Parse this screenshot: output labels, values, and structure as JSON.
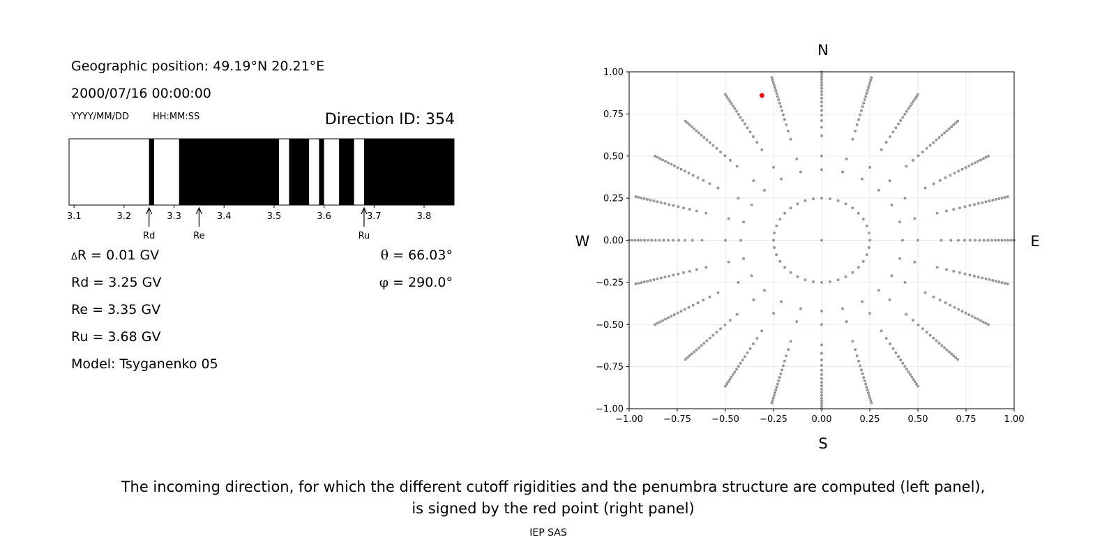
{
  "left_panel": {
    "geo_position": "Geographic position: 49.19°N 20.21°E",
    "datetime": "2000/07/16 00:00:00",
    "date_format": "YYYY/MM/DD",
    "time_format": "HH:MM:SS",
    "direction_id": "Direction ID: 354",
    "delta_r_sym": "Δ",
    "delta_r": "R = 0.01 GV",
    "rd": "Rd = 3.25 GV",
    "re": "Re = 3.35 GV",
    "ru": "Ru = 3.68 GV",
    "model": "Model: Tsyganenko 05",
    "theta_sym": "θ",
    "theta": " = 66.03°",
    "phi_sym": "φ",
    "phi": " = 290.0°"
  },
  "right_panel": {
    "north": "N",
    "south": "S",
    "west": "W",
    "east": "E"
  },
  "caption": {
    "line1": "The incoming direction, for which the different cutoff rigidities and the penumbra structure are computed (left panel),",
    "line2": "is signed by the red point (right panel)"
  },
  "footer": "IEP SAS",
  "chart_data": [
    {
      "type": "penumbra_bar",
      "xlim": [
        3.09,
        3.86
      ],
      "xticks": [
        3.1,
        3.2,
        3.3,
        3.4,
        3.5,
        3.6,
        3.7,
        3.8
      ],
      "tick_labels": [
        "3.1",
        "3.2",
        "3.3",
        "3.4",
        "3.5",
        "3.6",
        "3.7",
        "3.8"
      ],
      "colors": {
        "allowed": "#ffffff",
        "forbidden": "#000000"
      },
      "forbidden_bands": [
        [
          3.25,
          3.26
        ],
        [
          3.31,
          3.51
        ],
        [
          3.53,
          3.57
        ],
        [
          3.59,
          3.6
        ],
        [
          3.63,
          3.66
        ],
        [
          3.68,
          3.86
        ]
      ],
      "markers": [
        {
          "label": "Rd",
          "value": 3.25
        },
        {
          "label": "Re",
          "value": 3.35
        },
        {
          "label": "Ru",
          "value": 3.68
        }
      ]
    },
    {
      "type": "scatter",
      "xlim": [
        -1.0,
        1.0
      ],
      "ylim": [
        -1.0,
        1.0
      ],
      "xticks": [
        -1.0,
        -0.75,
        -0.5,
        -0.25,
        0.0,
        0.25,
        0.5,
        0.75,
        1.0
      ],
      "xtick_labels": [
        "−1.00",
        "−0.75",
        "−0.50",
        "−0.25",
        "0.00",
        "0.25",
        "0.50",
        "0.75",
        "1.00"
      ],
      "yticks": [
        1.0,
        0.75,
        0.5,
        0.25,
        0.0,
        -0.25,
        -0.5,
        -0.75,
        -1.0
      ],
      "ytick_labels": [
        "1.00",
        "0.75",
        "0.50",
        "0.25",
        "0.00",
        "−0.25",
        "−0.50",
        "−0.75",
        "−1.00"
      ],
      "grid": true,
      "colors": {
        "directions": "#999999",
        "selected": "#ee1111"
      },
      "directions": {
        "center": [
          0.0,
          0.0
        ],
        "ring_radii": [
          0.25,
          0.42
        ],
        "ring_counts": [
          36,
          24
        ],
        "spokes": 24,
        "spoke_r_start": 0.5,
        "spoke_r_end": 1.0,
        "spoke_points": 18
      },
      "selected_point": {
        "x": -0.31,
        "y": 0.86,
        "theta_deg": 66.03,
        "phi_deg": 290.0
      }
    }
  ]
}
